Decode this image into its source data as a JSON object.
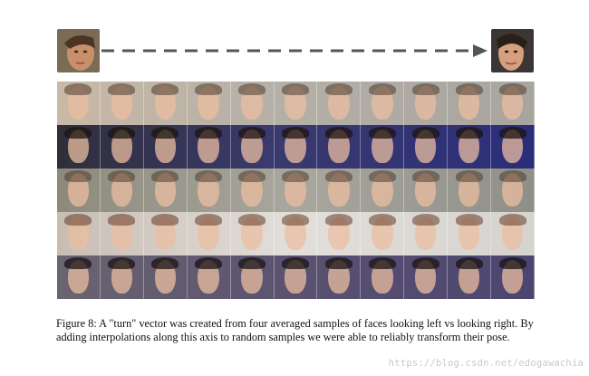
{
  "figure": {
    "caption": "Figure 8: A \"turn\" vector was created from four averaged samples of faces looking left vs looking right. By adding interpolations along this axis to random samples we were able to reliably transform their pose.",
    "rows": 5,
    "columns": 11,
    "palette": {
      "arrow": "#555555",
      "left_thumb_bg": "#7a6b55",
      "right_thumb_bg": "#3b3634",
      "row_bgs": [
        "#b8b2a8",
        "#3a3a6e",
        "#9c9a8f",
        "#d9d6d2",
        "#5a5270"
      ]
    }
  },
  "watermark": "https://blog.csdn.net/edogawachia"
}
